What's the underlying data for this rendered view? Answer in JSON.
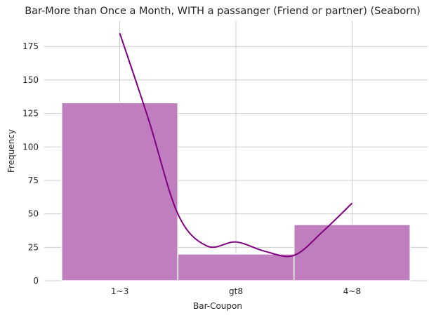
{
  "chart_data": {
    "type": "bar",
    "title": "Bar-More than Once a Month, WITH a passanger (Friend or partner) (Seaborn)",
    "xlabel": "Bar-Coupon",
    "ylabel": "Frequency",
    "categories": [
      "1~3",
      "gt8",
      "4~8"
    ],
    "values": [
      133,
      20,
      42
    ],
    "ylim": [
      0,
      194
    ],
    "yticks": [
      "0",
      "25",
      "50",
      "75",
      "100",
      "125",
      "150",
      "175"
    ],
    "grid": true,
    "colors": {
      "bar_fill": "#bf7fbf",
      "bar_edge": "#ffffff",
      "kde_line": "#800080",
      "grid": "#cccccc"
    },
    "kde_curve": {
      "x": [
        0,
        0.25,
        0.5,
        0.75,
        1.0,
        1.25,
        1.5,
        1.75,
        2.0
      ],
      "y": [
        185,
        120,
        50,
        26,
        29,
        22,
        19,
        37,
        58
      ]
    }
  }
}
